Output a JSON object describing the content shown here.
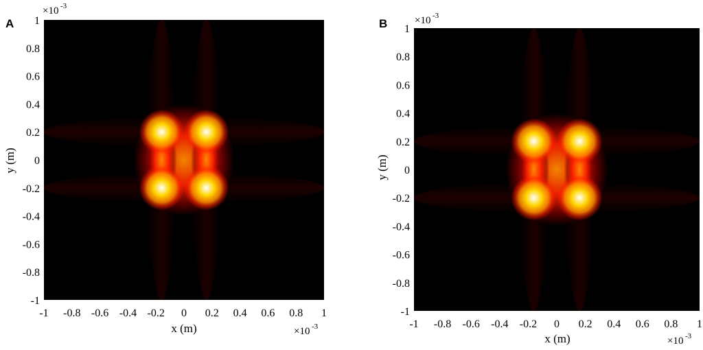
{
  "chart_data": [
    {
      "type": "heatmap",
      "panel_label": "A",
      "xlabel": "x (m)",
      "ylabel": "y (m)",
      "x_multiplier": "×10",
      "y_multiplier": "×10",
      "multiplier_exponent": "-3",
      "xlim": [
        -1,
        1
      ],
      "ylim": [
        -1,
        1
      ],
      "xticks": [
        "-1",
        "-0.8",
        "-0.6",
        "-0.4",
        "-0.2",
        "0",
        "0.2",
        "0.4",
        "0.6",
        "0.8",
        "1"
      ],
      "yticks": [
        "-1",
        "-0.8",
        "-0.6",
        "-0.4",
        "-0.2",
        "0",
        "0.2",
        "0.4",
        "0.6",
        "0.8",
        "1"
      ],
      "peaks": [
        {
          "x": -0.16,
          "y": 0.2
        },
        {
          "x": 0.16,
          "y": 0.2
        },
        {
          "x": -0.16,
          "y": -0.2
        },
        {
          "x": 0.16,
          "y": -0.2
        }
      ],
      "colormap": [
        "#000000",
        "#3a0000",
        "#8b0000",
        "#ff2000",
        "#ff8c00",
        "#ffd400",
        "#ffffff"
      ]
    },
    {
      "type": "heatmap",
      "panel_label": "B",
      "xlabel": "x (m)",
      "ylabel": "y (m)",
      "x_multiplier": "×10",
      "y_multiplier": "×10",
      "multiplier_exponent": "-3",
      "xlim": [
        -1,
        1
      ],
      "ylim": [
        -1,
        1
      ],
      "xticks": [
        "-1",
        "-0.8",
        "-0.6",
        "-0.4",
        "-0.2",
        "0",
        "0.2",
        "0.4",
        "0.6",
        "0.8",
        "1"
      ],
      "yticks": [
        "-1",
        "-0.8",
        "-0.6",
        "-0.4",
        "-0.2",
        "0",
        "0.2",
        "0.4",
        "0.6",
        "0.8",
        "1"
      ],
      "peaks": [
        {
          "x": -0.16,
          "y": 0.2
        },
        {
          "x": 0.16,
          "y": 0.2
        },
        {
          "x": -0.16,
          "y": -0.2
        },
        {
          "x": 0.16,
          "y": -0.2
        }
      ],
      "colormap": [
        "#000000",
        "#3a0000",
        "#8b0000",
        "#ff2000",
        "#ff8c00",
        "#ffd400",
        "#ffffff"
      ]
    }
  ]
}
